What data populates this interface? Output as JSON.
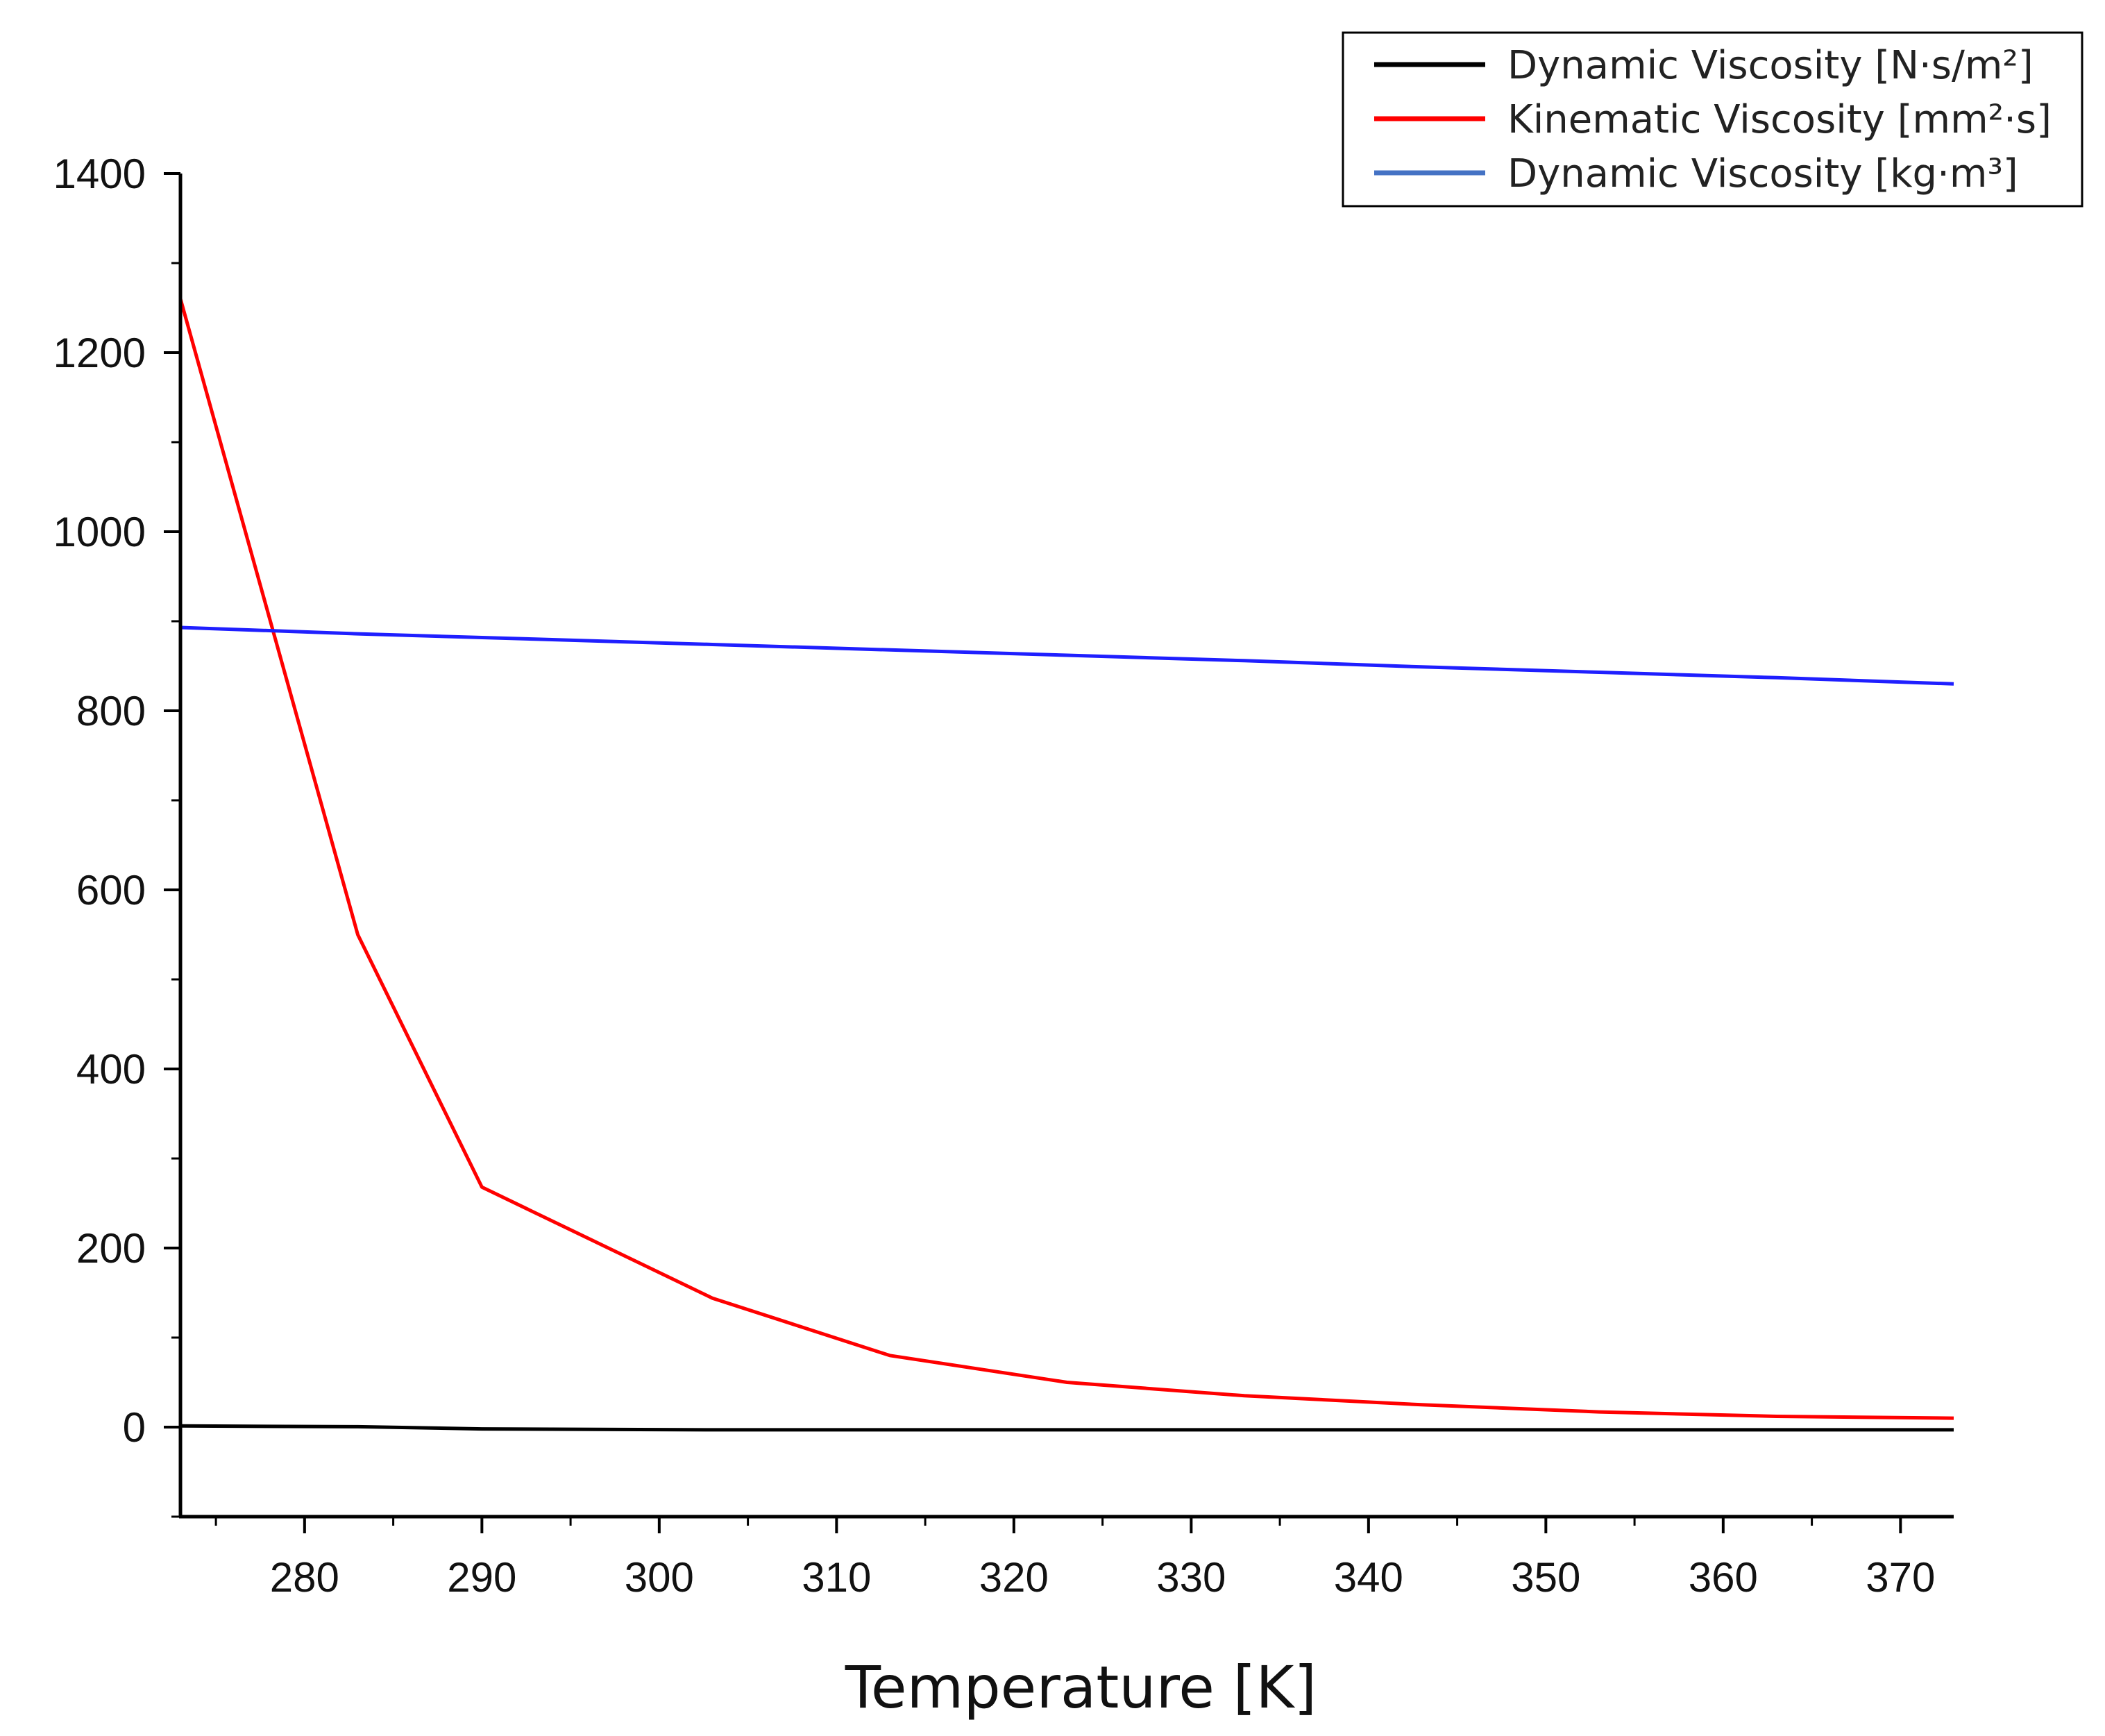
{
  "chart_data": {
    "type": "line",
    "title": "",
    "xlabel": "Temperature [K]",
    "ylabel": "",
    "xlim": [
      273,
      373
    ],
    "ylim": [
      -100,
      1400
    ],
    "x_ticks": [
      280,
      290,
      300,
      310,
      320,
      330,
      340,
      350,
      360,
      370
    ],
    "x_tick_labels": [
      "280",
      "290",
      "300",
      "310",
      "320",
      "330",
      "340",
      "350",
      "360",
      "370"
    ],
    "y_ticks": [
      0,
      200,
      400,
      600,
      800,
      1000,
      1200,
      1400
    ],
    "y_tick_labels": [
      "0",
      "200",
      "400",
      "600",
      "800",
      "1000",
      "1200",
      "1400"
    ],
    "grid": false,
    "legend_position": "top-right",
    "series": [
      {
        "name": "Dynamic Viscosity [N·s/m²]",
        "color": "#000000",
        "x": [
          273,
          283,
          290,
          303,
          313,
          323,
          333,
          343,
          353,
          363,
          373
        ],
        "y": [
          1.3,
          0.5,
          -2,
          -3,
          -3,
          -3,
          -3,
          -3,
          -3,
          -3,
          -3
        ]
      },
      {
        "name": "Kinematic Viscosity [mm²·s]",
        "color": "#ff0000",
        "x": [
          273,
          283,
          290,
          303,
          313,
          323,
          333,
          343,
          353,
          363,
          373
        ],
        "y": [
          1260,
          550,
          268,
          144,
          80,
          50,
          35,
          25,
          17,
          12,
          10
        ]
      },
      {
        "name": "Dynamic Viscosity [kg·m³]",
        "color": "#1f1fff",
        "legend_color": "#4472c4",
        "x": [
          273,
          283,
          293,
          303,
          313,
          323,
          333,
          343,
          353,
          363,
          373
        ],
        "y": [
          893,
          886,
          880,
          874,
          868,
          862,
          856,
          849,
          843,
          837,
          830
        ]
      }
    ]
  }
}
